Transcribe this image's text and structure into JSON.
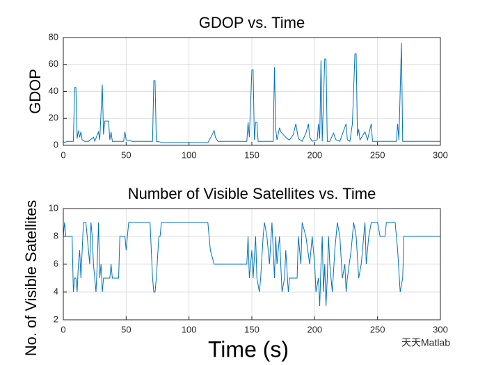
{
  "chart_data": [
    {
      "type": "line",
      "title": "GDOP vs. Time",
      "ylabel": "GDOP",
      "xlim": [
        0,
        300
      ],
      "xticks": [
        0,
        50,
        100,
        150,
        200,
        250,
        300
      ],
      "ylim": [
        0,
        80
      ],
      "yticks": [
        0,
        20,
        40,
        60,
        80
      ],
      "grid": true,
      "series": [
        {
          "color": "#0072bd",
          "x": [
            0,
            1,
            3,
            8,
            9,
            10,
            11,
            12,
            13,
            14,
            15,
            17,
            20,
            24,
            25,
            28,
            29,
            31,
            32,
            33,
            36,
            37,
            38,
            39,
            48,
            49,
            50,
            55,
            71,
            72,
            73,
            74,
            80,
            115,
            118,
            120,
            121,
            123,
            146,
            147,
            148,
            150,
            151,
            152,
            153,
            154,
            155,
            167,
            168,
            169,
            170,
            172,
            173,
            176,
            178,
            180,
            183,
            185,
            187,
            190,
            193,
            195,
            196,
            198,
            202,
            203,
            204,
            205,
            206,
            208,
            209,
            210,
            212,
            215,
            217,
            220,
            225,
            226,
            228,
            230,
            232,
            233,
            234,
            235,
            236,
            240,
            242,
            245,
            246,
            250,
            265,
            266,
            267,
            269,
            270,
            300
          ],
          "values": [
            3,
            2,
            3,
            3,
            43,
            43,
            5,
            11,
            6,
            10,
            4,
            3,
            3,
            6,
            3,
            10,
            4,
            45,
            8,
            18,
            18,
            4,
            10,
            3,
            3,
            10,
            4,
            3,
            3,
            48,
            48,
            3,
            2,
            2,
            7,
            11,
            6,
            3,
            3,
            17,
            6,
            56,
            56,
            4,
            17,
            17,
            3,
            3,
            58,
            12,
            4,
            13,
            10,
            7,
            5,
            4,
            8,
            16,
            5,
            3,
            9,
            16,
            6,
            3,
            4,
            16,
            5,
            63,
            3,
            64,
            64,
            3,
            3,
            9,
            4,
            3,
            16,
            4,
            3,
            16,
            68,
            68,
            7,
            12,
            4,
            10,
            4,
            16,
            3,
            3,
            3,
            16,
            4,
            76,
            3,
            3
          ]
        }
      ]
    },
    {
      "type": "line",
      "title": "Number of Visible Satellites vs. Time",
      "ylabel": "No. of Visible Satellites",
      "xlabel": "Time (s)",
      "xlim": [
        0,
        300
      ],
      "xticks": [
        0,
        50,
        100,
        150,
        200,
        250,
        300
      ],
      "ylim": [
        2,
        10
      ],
      "yticks": [
        2,
        4,
        6,
        8,
        10
      ],
      "grid": true,
      "series": [
        {
          "color": "#0072bd",
          "x": [
            0,
            1,
            2,
            7,
            8,
            9,
            10,
            11,
            12,
            13,
            14,
            16,
            18,
            19,
            21,
            22,
            23,
            24,
            26,
            27,
            28,
            29,
            30,
            31,
            32,
            37,
            38,
            39,
            44,
            45,
            49,
            50,
            52,
            69,
            71,
            72,
            73,
            74,
            76,
            77,
            78,
            115,
            117,
            120,
            146,
            147,
            148,
            149,
            150,
            151,
            153,
            154,
            156,
            157,
            159,
            160,
            162,
            164,
            166,
            168,
            169,
            170,
            172,
            174,
            176,
            177,
            179,
            180,
            186,
            187,
            189,
            190,
            193,
            196,
            198,
            200,
            201,
            203,
            204,
            205,
            206,
            207,
            208,
            209,
            210,
            211,
            212,
            214,
            216,
            218,
            220,
            222,
            224,
            225,
            226,
            229,
            231,
            233,
            235,
            237,
            239,
            240,
            241,
            243,
            245,
            250,
            252,
            256,
            257,
            264,
            266,
            268,
            270,
            271,
            300
          ],
          "values": [
            8,
            9,
            8,
            8,
            4,
            5,
            5,
            4,
            6,
            7,
            5,
            9,
            9,
            8,
            6,
            9,
            8,
            6,
            4,
            6,
            9,
            5,
            6,
            4,
            5,
            5,
            6,
            5,
            5,
            8,
            8,
            7,
            9,
            9,
            5,
            4,
            4,
            5,
            8,
            8,
            9,
            9,
            7,
            6,
            6,
            8,
            5,
            6,
            7,
            5,
            8,
            5,
            4,
            5,
            8,
            9,
            8,
            6,
            9,
            5,
            8,
            6,
            8,
            4,
            5,
            7,
            4,
            5,
            5,
            8,
            6,
            9,
            8,
            6,
            8,
            6,
            4,
            5,
            3,
            6,
            8,
            4,
            6,
            3,
            5,
            8,
            6,
            4,
            7,
            9,
            8,
            5,
            6,
            4,
            5,
            7,
            9,
            8,
            5,
            6,
            8,
            9,
            6,
            8,
            9,
            9,
            8,
            8,
            9,
            9,
            7,
            4,
            5,
            8,
            8
          ]
        }
      ]
    }
  ],
  "watermark": "天天Matlab"
}
